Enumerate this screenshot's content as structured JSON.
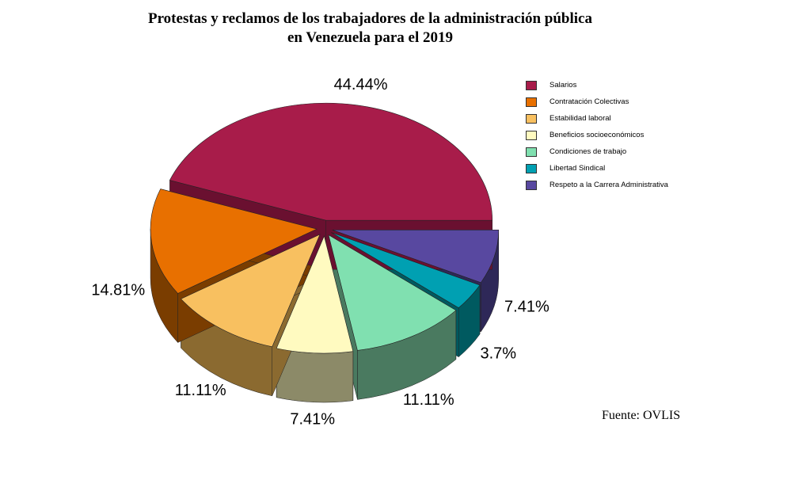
{
  "chart_data": {
    "type": "pie",
    "title": "Protestas y reclamos de los trabajadores de la administración pública en Venezuela para el 2019",
    "title_lines": [
      "Protestas y reclamos de los trabajadores de la administración pública",
      "en Venezuela para el 2019"
    ],
    "categories": [
      "Salarios",
      "Contratación Colectivas",
      "Estabilidad laboral",
      "Beneficios socioeconómicos",
      "Condiciones de trabajo",
      "Libertad Sindical",
      "Respeto a la Carrera Administrativa"
    ],
    "values": [
      44.44,
      14.81,
      11.11,
      7.41,
      11.11,
      3.7,
      7.41
    ],
    "labels": [
      "44.44%",
      "14.81%",
      "11.11%",
      "7.41%",
      "11.11%",
      "3.7%",
      "7.41%"
    ],
    "colors": [
      "#a81c4a",
      "#e87000",
      "#f8c060",
      "#fffac0",
      "#80e0b0",
      "#00a0b2",
      "#5848a0"
    ],
    "side_colors": [
      "#6a1030",
      "#7a3d00",
      "#8b6a30",
      "#8c8a68",
      "#4a7a60",
      "#005a60",
      "#2e2858"
    ],
    "legend_position": "right",
    "source": "Fuente: OVLIS"
  }
}
